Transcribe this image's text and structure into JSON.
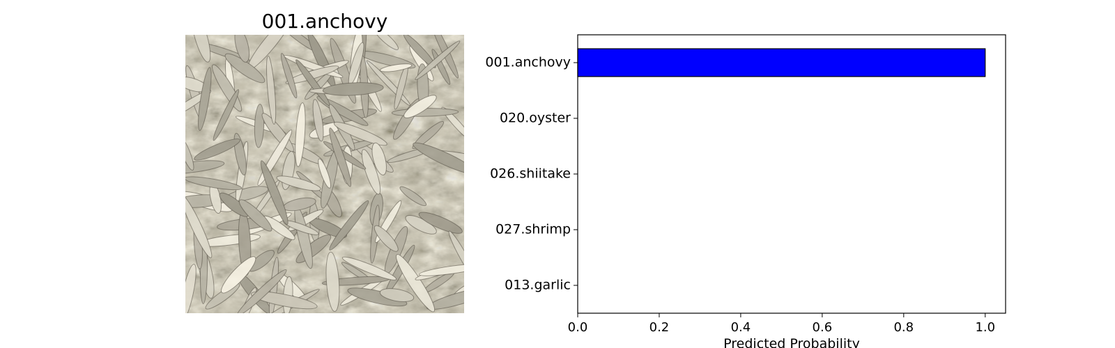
{
  "image_panel": {
    "title": "001.anchovy",
    "photo_icon": "anchovy-photo"
  },
  "chart_data": {
    "type": "bar",
    "orientation": "horizontal",
    "categories": [
      "001.anchovy",
      "020.oyster",
      "026.shiitake",
      "027.shrimp",
      "013.garlic"
    ],
    "values": [
      1.0,
      0.0,
      0.0,
      0.0,
      0.0
    ],
    "title": "",
    "xlabel": "Predicted Probability",
    "ylabel": "",
    "xlim": [
      0,
      1.05
    ],
    "xticks": [
      0.0,
      0.2,
      0.4,
      0.6,
      0.8,
      1.0
    ],
    "xtick_labels": [
      "0.0",
      "0.2",
      "0.4",
      "0.6",
      "0.8",
      "1.0"
    ],
    "bar_color": "#0000ff",
    "bar_edge_color": "#000000",
    "grid": false,
    "legend": "none"
  }
}
